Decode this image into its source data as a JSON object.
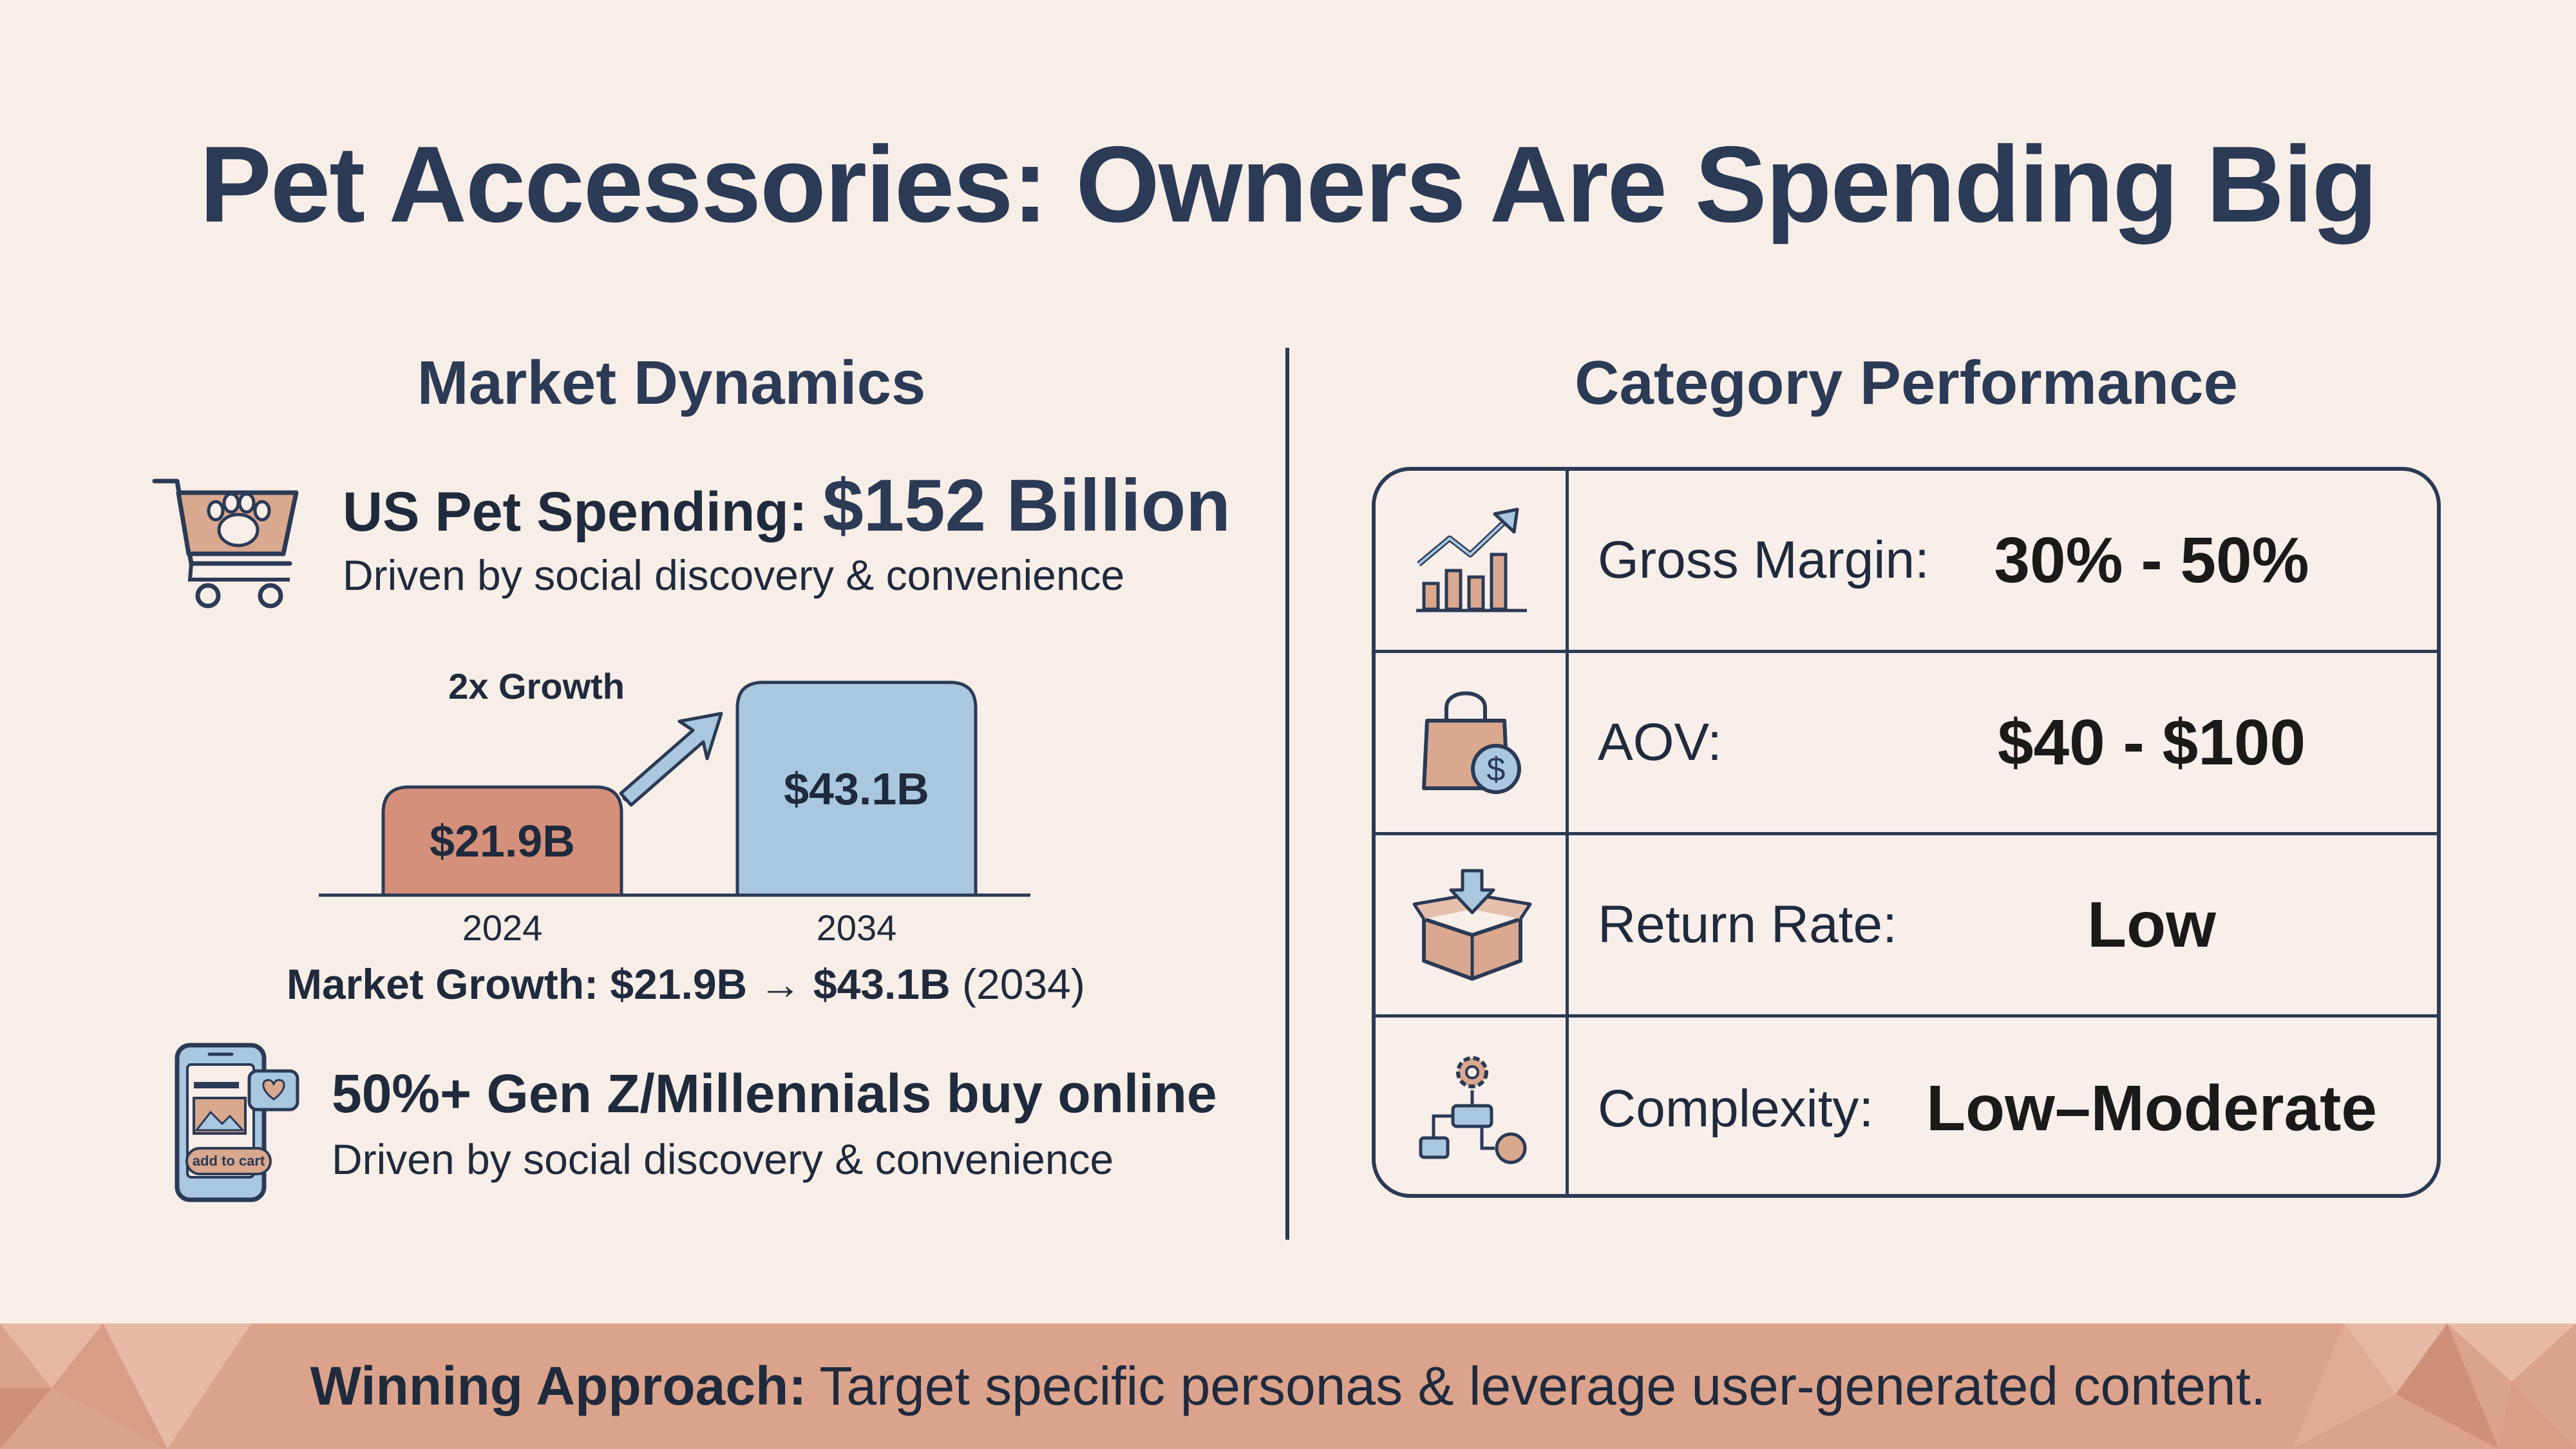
{
  "title": "Pet Accessories: Owners Are Spending Big",
  "market": {
    "heading": "Market Dynamics",
    "spending_label": "US Pet Spending:",
    "spending_value": "$152 Billion",
    "spending_sub": "Driven by social discovery & convenience",
    "growth_label": "2x Growth",
    "growth_caption_bold": "Market Growth: $21.9B → $43.1B",
    "growth_caption_light": "(2034)",
    "gen_title": "50%+ Gen Z/Millennials buy online",
    "gen_sub": "Driven by social discovery & convenience",
    "phone_button": "add to cart"
  },
  "chart_data": {
    "type": "bar",
    "categories": [
      "2024",
      "2034"
    ],
    "values": [
      21.9,
      43.1
    ],
    "data_labels": [
      "$21.9B",
      "$43.1B"
    ],
    "colors": [
      "#d4907a",
      "#a9c8e0"
    ],
    "annotation": "2x Growth"
  },
  "performance": {
    "heading": "Category Performance",
    "rows": [
      {
        "label": "Gross Margin:",
        "value": "30% - 50%",
        "icon": "chart-up-icon"
      },
      {
        "label": "AOV:",
        "value": "$40 - $100",
        "icon": "shopping-bag-dollar-icon"
      },
      {
        "label": "Return Rate:",
        "value": "Low",
        "icon": "box-arrow-icon"
      },
      {
        "label": "Complexity:",
        "value": "Low–Moderate",
        "icon": "workflow-gear-icon"
      }
    ]
  },
  "footer": {
    "bold": "Winning Approach:",
    "text": "Target specific personas & leverage user-generated content."
  },
  "colors": {
    "background": "#f8eee8",
    "navy": "#2b3a55",
    "terracotta": "#d4907a",
    "sky": "#a9c8e0",
    "footer": "#dba38c"
  }
}
